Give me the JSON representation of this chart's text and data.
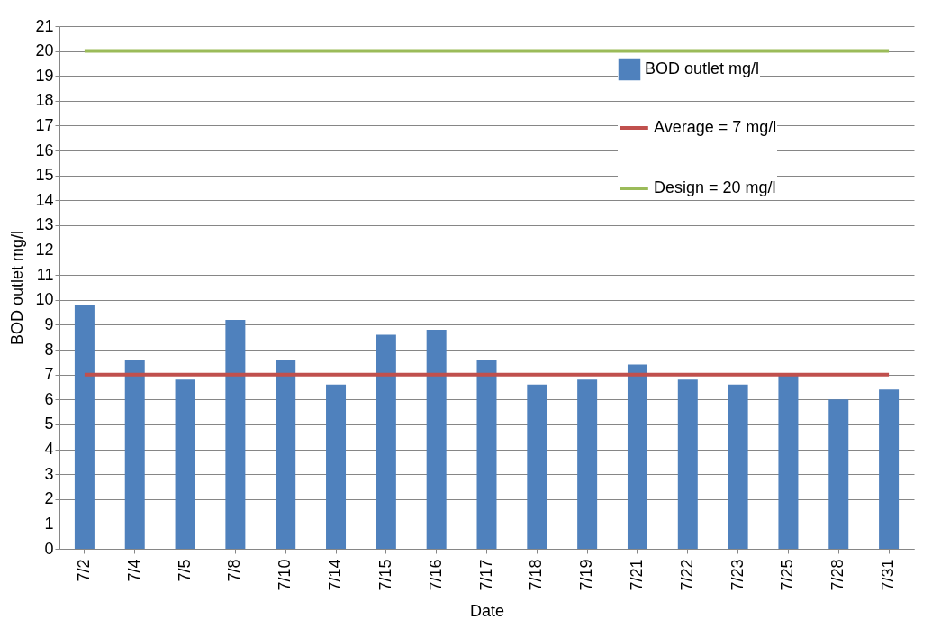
{
  "chart_data": {
    "type": "bar",
    "xlabel": "Date",
    "ylabel": "BOD outlet mg/l",
    "categories": [
      "7/2",
      "7/4",
      "7/5",
      "7/8",
      "7/10",
      "7/14",
      "7/15",
      "7/16",
      "7/17",
      "7/18",
      "7/19",
      "7/21",
      "7/22",
      "7/23",
      "7/25",
      "7/28",
      "7/31"
    ],
    "series": [
      {
        "name": "BOD outlet mg/l",
        "color": "#4f81bd",
        "values": [
          9.8,
          7.6,
          6.8,
          9.2,
          7.6,
          6.6,
          8.6,
          8.8,
          7.6,
          6.6,
          6.8,
          7.4,
          6.8,
          6.6,
          7.0,
          6.0,
          6.4
        ]
      },
      {
        "name": "Average = 7 mg/l",
        "type": "line",
        "color": "#c0504d",
        "values": [
          7,
          7,
          7,
          7,
          7,
          7,
          7,
          7,
          7,
          7,
          7,
          7,
          7,
          7,
          7,
          7,
          7
        ]
      },
      {
        "name": "Design = 20 mg/l",
        "type": "line",
        "color": "#9bbb59",
        "values": [
          20,
          20,
          20,
          20,
          20,
          20,
          20,
          20,
          20,
          20,
          20,
          20,
          20,
          20,
          20,
          20,
          20
        ]
      }
    ],
    "ylim": [
      0,
      21
    ],
    "yticks": [
      0,
      1,
      2,
      3,
      4,
      5,
      6,
      7,
      8,
      9,
      10,
      11,
      12,
      13,
      14,
      15,
      16,
      17,
      18,
      19,
      20,
      21
    ],
    "grid": "y",
    "legend": "top right"
  }
}
